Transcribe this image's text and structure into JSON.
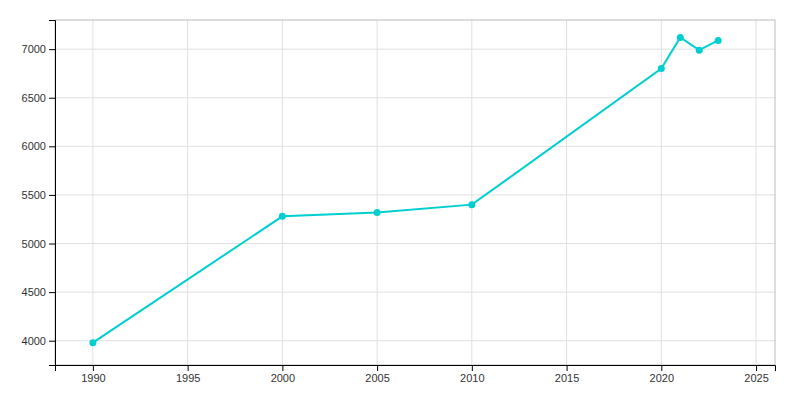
{
  "chart_data": {
    "type": "line",
    "x": [
      1990,
      2000,
      2005,
      2010,
      2020,
      2021,
      2022,
      2023
    ],
    "values": [
      3980,
      5280,
      5320,
      5400,
      6800,
      7120,
      6990,
      7090
    ],
    "color": "#00CED1",
    "marker": "circle",
    "xlim": [
      1988,
      2026
    ],
    "ylim": [
      3750,
      7300
    ],
    "xticks": [
      1990,
      1995,
      2000,
      2005,
      2010,
      2015,
      2020,
      2025
    ],
    "yticks": [
      4000,
      4500,
      5000,
      5500,
      6000,
      6500,
      7000
    ],
    "grid": true
  }
}
